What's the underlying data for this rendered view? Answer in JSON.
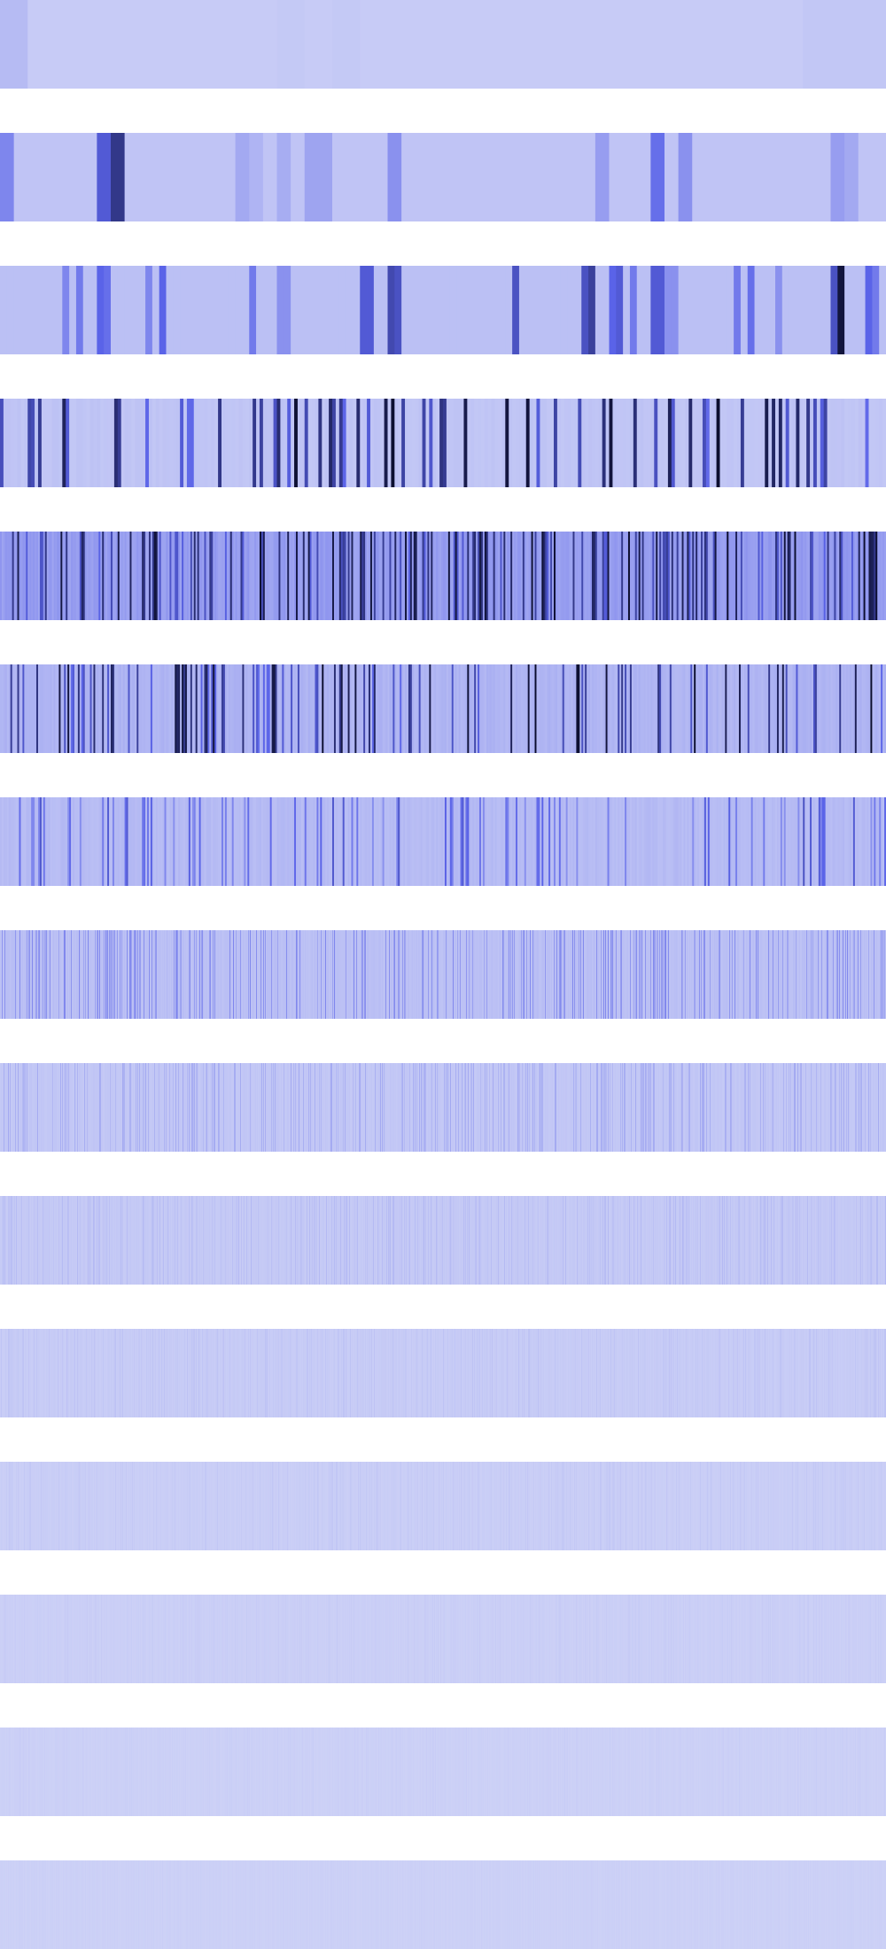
{
  "chart_data": {
    "type": "heatmap",
    "title": "",
    "xlabel": "",
    "ylabel": "",
    "axes": "none",
    "legend": "none",
    "grid": false,
    "colormap": {
      "low": "#d3d7f7",
      "mid": "#5a63e8",
      "high": "#0a0c2a"
    },
    "value_range": [
      0,
      1
    ],
    "strips": [
      {
        "cells": 32,
        "dominant_level": 0.05,
        "peaks": [
          [
            0,
            0.12
          ],
          [
            10,
            0.06
          ],
          [
            12,
            0.06
          ],
          [
            20,
            0.05
          ],
          [
            29,
            0.07
          ],
          [
            30,
            0.07
          ],
          [
            31,
            0.07
          ]
        ]
      },
      {
        "cells": 64,
        "dominant_level": 0.08,
        "peaks": [
          [
            0,
            0.35
          ],
          [
            7,
            0.55
          ],
          [
            8,
            0.75
          ],
          [
            17,
            0.2
          ],
          [
            18,
            0.15
          ],
          [
            20,
            0.18
          ],
          [
            22,
            0.22
          ],
          [
            23,
            0.22
          ],
          [
            28,
            0.3
          ],
          [
            43,
            0.25
          ],
          [
            47,
            0.45
          ],
          [
            49,
            0.3
          ],
          [
            60,
            0.25
          ],
          [
            61,
            0.2
          ]
        ]
      },
      {
        "cells": 128,
        "dominant_level": 0.1,
        "peaks": [
          [
            9,
            0.35
          ],
          [
            11,
            0.4
          ],
          [
            14,
            0.5
          ],
          [
            15,
            0.45
          ],
          [
            21,
            0.35
          ],
          [
            23,
            0.5
          ],
          [
            36,
            0.4
          ],
          [
            40,
            0.3
          ],
          [
            41,
            0.3
          ],
          [
            52,
            0.55
          ],
          [
            53,
            0.55
          ],
          [
            56,
            0.65
          ],
          [
            57,
            0.6
          ],
          [
            74,
            0.6
          ],
          [
            84,
            0.6
          ],
          [
            85,
            0.7
          ],
          [
            88,
            0.5
          ],
          [
            89,
            0.55
          ],
          [
            91,
            0.4
          ],
          [
            94,
            0.55
          ],
          [
            95,
            0.55
          ],
          [
            96,
            0.3
          ],
          [
            97,
            0.3
          ],
          [
            106,
            0.4
          ],
          [
            108,
            0.45
          ],
          [
            112,
            0.3
          ],
          [
            120,
            0.6
          ],
          [
            121,
            0.95
          ],
          [
            125,
            0.5
          ],
          [
            126,
            0.4
          ]
        ]
      },
      {
        "cells": 256,
        "dominant_level": 0.08,
        "peak_count": 70,
        "peak_level_range": [
          0.45,
          1.0
        ]
      },
      {
        "cells": 512,
        "dominant_level": 0.25,
        "peak_count": 180,
        "peak_level_range": [
          0.5,
          1.0
        ]
      },
      {
        "cells": 512,
        "dominant_level": 0.15,
        "peak_count": 120,
        "peak_level_range": [
          0.45,
          1.0
        ]
      },
      {
        "cells": 512,
        "dominant_level": 0.12,
        "peak_count": 95,
        "peak_level_range": [
          0.3,
          0.6
        ]
      },
      {
        "cells": 1000,
        "dominant_level": 0.1,
        "peak_count": 260,
        "peak_level_range": [
          0.2,
          0.35
        ]
      },
      {
        "cells": 1000,
        "dominant_level": 0.07,
        "peak_count": 280,
        "peak_level_range": [
          0.12,
          0.2
        ]
      },
      {
        "cells": 1000,
        "dominant_level": 0.06,
        "peak_count": 260,
        "peak_level_range": [
          0.08,
          0.13
        ]
      },
      {
        "cells": 1000,
        "dominant_level": 0.05,
        "peak_count": 220,
        "peak_level_range": [
          0.06,
          0.09
        ]
      },
      {
        "cells": 1000,
        "dominant_level": 0.04,
        "peak_count": 200,
        "peak_level_range": [
          0.05,
          0.07
        ]
      },
      {
        "cells": 1000,
        "dominant_level": 0.035,
        "peak_count": 160,
        "peak_level_range": [
          0.04,
          0.055
        ]
      },
      {
        "cells": 1000,
        "dominant_level": 0.03,
        "peak_count": 120,
        "peak_level_range": [
          0.035,
          0.045
        ]
      },
      {
        "cells": 1000,
        "dominant_level": 0.03,
        "peak_count": 60,
        "peak_level_range": [
          0.03,
          0.038
        ]
      }
    ]
  }
}
